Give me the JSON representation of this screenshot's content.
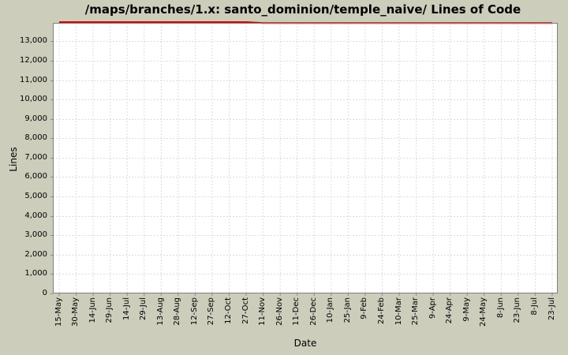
{
  "title": "/maps/branches/1.x: santo_dominion/temple_naive/ Lines of Code",
  "colors": {
    "background": "#cccdbb",
    "plot_background": "#ffffff",
    "plot_border": "#7f7f7f",
    "gridline": "#dcdcdc",
    "tick": "#8c8c8c",
    "series": "#dd0000",
    "text": "#000000"
  },
  "chart_data": {
    "type": "line",
    "title": "/maps/branches/1.x: santo_dominion/temple_naive/ Lines of Code",
    "xlabel": "Date",
    "ylabel": "Lines",
    "grid": true,
    "legend": false,
    "ylim": [
      0,
      13950
    ],
    "y_ticks": [
      0,
      1000,
      2000,
      3000,
      4000,
      5000,
      6000,
      7000,
      8000,
      9000,
      10000,
      11000,
      12000,
      13000
    ],
    "y_tick_labels": [
      "0",
      "1,000",
      "2,000",
      "3,000",
      "4,000",
      "5,000",
      "6,000",
      "7,000",
      "8,000",
      "9,000",
      "10,000",
      "11,000",
      "12,000",
      "13,000"
    ],
    "categories": [
      "15-May",
      "30-May",
      "14-Jun",
      "29-Jun",
      "14-Jul",
      "29-Jul",
      "13-Aug",
      "28-Aug",
      "12-Sep",
      "27-Sep",
      "12-Oct",
      "27-Oct",
      "11-Nov",
      "26-Nov",
      "11-Dec",
      "26-Dec",
      "10-Jan",
      "25-Jan",
      "9-Feb",
      "24-Feb",
      "10-Mar",
      "25-Mar",
      "9-Apr",
      "24-Apr",
      "9-May",
      "24-May",
      "8-Jun",
      "23-Jun",
      "8-Jul",
      "23-Jul"
    ],
    "series": [
      {
        "name": "Lines of Code",
        "color": "#dd0000",
        "values": [
          13950,
          13950,
          13950,
          13950,
          13950,
          13950,
          13950,
          13950,
          13950,
          13950,
          13950,
          13950,
          13900,
          13900,
          13900,
          13900,
          13900,
          13900,
          13900,
          13900,
          13900,
          13900,
          13900,
          13900,
          13900,
          13900,
          13900,
          13900,
          13900,
          13900
        ]
      }
    ],
    "annotations": "Series line hugs the top edge of the plot area (clipped at the axis maximum); it steps down slightly around 11-Nov. Rest of plot is empty."
  }
}
